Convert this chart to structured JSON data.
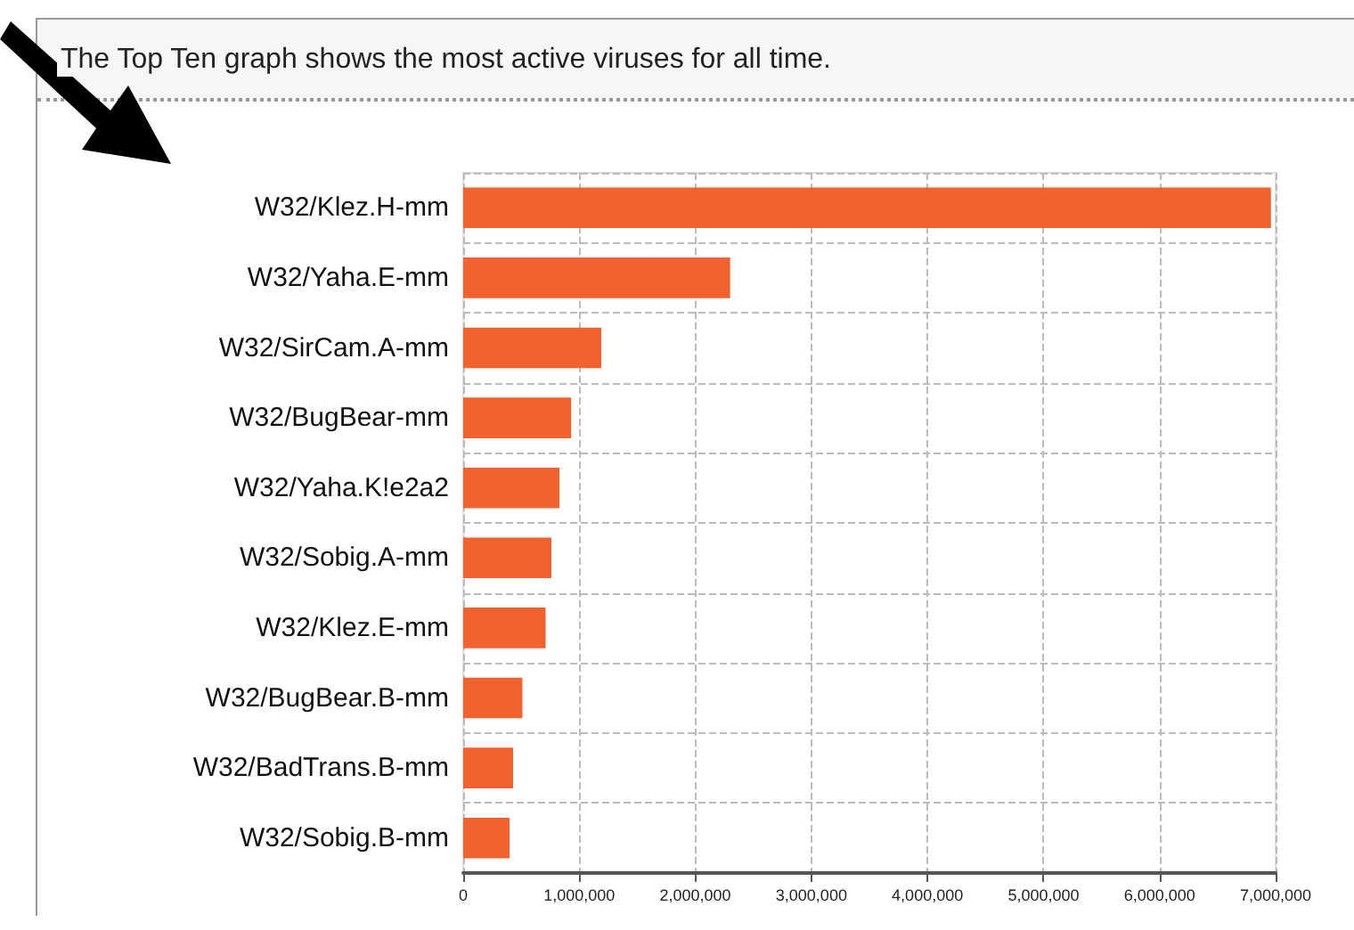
{
  "chart_data": {
    "type": "bar",
    "orientation": "horizontal",
    "title": "The Top Ten graph shows the most active viruses for all time.",
    "categories": [
      "W32/Klez.H-mm",
      "W32/Yaha.E-mm",
      "W32/SirCam.A-mm",
      "W32/BugBear-mm",
      "W32/Yaha.K!e2a2",
      "W32/Sobig.A-mm",
      "W32/Klez.E-mm",
      "W32/BugBear.B-mm",
      "W32/BadTrans.B-mm",
      "W32/Sobig.B-mm"
    ],
    "values": [
      6960000,
      2300000,
      1190000,
      930000,
      830000,
      760000,
      710000,
      510000,
      430000,
      400000
    ],
    "color": "#f0632f",
    "xlim": [
      0,
      7000000
    ],
    "xticks": [
      0,
      {
        "value": 1000000,
        "label": "1,000,000"
      },
      {
        "value": 2000000,
        "label": "2,000,000"
      },
      {
        "value": 3000000,
        "label": "3,000,000"
      },
      {
        "value": 4000000,
        "label": "4,000,000"
      },
      {
        "value": 5000000,
        "label": "5,000,000"
      },
      {
        "value": 6000000,
        "label": "6,000,000"
      },
      {
        "value": 7000000,
        "label": "7,000,000"
      }
    ],
    "grid": true
  }
}
